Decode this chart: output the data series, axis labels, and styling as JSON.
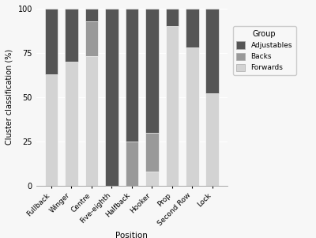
{
  "positions": [
    "Fullback",
    "Winger",
    "Centre",
    "Five-eighth",
    "Halfback",
    "Hooker",
    "Prop",
    "Second Row",
    "Lock"
  ],
  "forwards": [
    63,
    70,
    73,
    0,
    0,
    8,
    90,
    78,
    52
  ],
  "backs": [
    0,
    0,
    20,
    0,
    25,
    22,
    0,
    0,
    0
  ],
  "adjustables": [
    37,
    30,
    7,
    100,
    75,
    70,
    10,
    22,
    48
  ],
  "colors": {
    "Adjustables": "#555555",
    "Backs": "#999999",
    "Forwards": "#d3d3d3"
  },
  "ylabel": "Cluster classification (%)",
  "xlabel": "Position",
  "legend_title": "Group",
  "yticks": [
    0,
    25,
    50,
    75,
    100
  ],
  "bg_color": "#f7f7f7",
  "bar_edge_color": "#ffffff",
  "bar_width": 0.65
}
